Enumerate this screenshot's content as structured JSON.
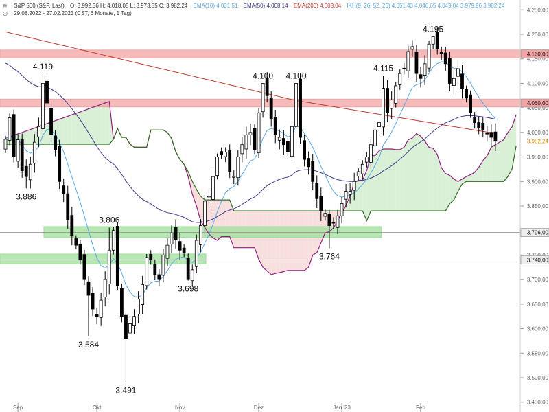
{
  "header": {
    "symbol": "S&P 500 (S&P, Last)",
    "ohlc": "O: 3.992,36  H: 4.018,05  L: 3.973,55  C: 3.982,24",
    "ema10": "EMA(10)  4.031,51",
    "ema50": "EMA(50)  4.008,14",
    "ema200": "EMA(200)  4.008,04",
    "ikh": "IKH(9, 26, 52, 26)  4.051,43  4.046,65  4.049,04  3.979,96  3.982,24",
    "range": "29.08.2022 - 27.02.2023  (CST, 6 Monate, 1 Tag)"
  },
  "colors": {
    "ema10": "#5aa9e6",
    "ema50": "#3a3a8a",
    "ema200": "#c0392b",
    "span_a": "#8e1f7e",
    "span_b": "#2e6b1f",
    "kumo_bull": "#d9efd6",
    "kumo_bear": "#f9dede",
    "resistance": "#f2a3a3",
    "support": "#9fdf9a"
  },
  "chart_data": {
    "type": "candlestick",
    "title": "S&P 500 (S&P, Last)",
    "period": "29.08.2022 - 27.02.2023",
    "y_axis": {
      "min": 3430,
      "max": 4270,
      "ticks": [
        "4.250,00",
        "4.200,00",
        "4.150,00",
        "4.100,00",
        "4.050,00",
        "4.000,00",
        "3.950,00",
        "3.900,00",
        "3.850,00",
        "3.800,00",
        "3.750,00",
        "3.700,00",
        "3.650,00",
        "3.600,00",
        "3.550,00",
        "3.500,00",
        "3.450,00"
      ],
      "tick_values": [
        4250,
        4200,
        4150,
        4100,
        4050,
        4000,
        3950,
        3900,
        3850,
        3800,
        3750,
        3700,
        3650,
        3600,
        3550,
        3500,
        3450
      ]
    },
    "x_axis": {
      "labels": [
        "Sep",
        "Okt",
        "Nov",
        "Dez",
        "Jan '23",
        "Feb"
      ],
      "label_index": [
        3,
        22,
        42,
        61,
        81,
        100
      ]
    },
    "price_tags": [
      {
        "label": "4.160,00",
        "value": 4160,
        "style": "resistance"
      },
      {
        "label": "4.060,00",
        "value": 4060,
        "style": "resistance"
      },
      {
        "label": "3.796,00",
        "value": 3796,
        "style": "plain"
      },
      {
        "label": "3.740,00",
        "value": 3740,
        "style": "plain"
      },
      {
        "label": "3.982,24",
        "value": 3982.24,
        "style": "last"
      }
    ],
    "zones": [
      {
        "name": "resistance 4.160",
        "low": 4152,
        "high": 4168,
        "color": "resistance"
      },
      {
        "name": "resistance 4.060",
        "low": 4052,
        "high": 4068,
        "color": "resistance"
      },
      {
        "name": "support 3.796",
        "low": 3786,
        "high": 3808,
        "color": "support"
      },
      {
        "name": "support 3.740",
        "low": 3732,
        "high": 3752,
        "color": "support"
      }
    ],
    "annotations": [
      {
        "text": "4.119",
        "index": 9,
        "value": 4119,
        "pos": "above"
      },
      {
        "text": "3.886",
        "index": 5,
        "value": 3886,
        "pos": "below"
      },
      {
        "text": "3.806",
        "index": 25,
        "value": 3806,
        "pos": "above"
      },
      {
        "text": "3.584",
        "index": 20,
        "value": 3584,
        "pos": "below"
      },
      {
        "text": "3.491",
        "index": 29,
        "value": 3491,
        "pos": "below"
      },
      {
        "text": "3.698",
        "index": 44,
        "value": 3698,
        "pos": "below"
      },
      {
        "text": "4.100",
        "index": 62,
        "value": 4100,
        "pos": "above"
      },
      {
        "text": "4.100",
        "index": 70,
        "value": 4100,
        "pos": "above"
      },
      {
        "text": "3.764",
        "index": 78,
        "value": 3764,
        "pos": "below"
      },
      {
        "text": "4.115",
        "index": 91,
        "value": 4115,
        "pos": "above"
      },
      {
        "text": "4.195",
        "index": 103,
        "value": 4195,
        "pos": "above"
      }
    ],
    "close": [
      3986,
      4030,
      3950,
      3985,
      3922,
      3910,
      3935,
      3980,
      4012,
      4100,
      4060,
      3995,
      3965,
      3900,
      3875,
      3822,
      3790,
      3770,
      3740,
      3700,
      3668,
      3640,
      3625,
      3658,
      3700,
      3760,
      3800,
      3688,
      3625,
      3580,
      3610,
      3625,
      3660,
      3690,
      3745,
      3740,
      3710,
      3700,
      3750,
      3770,
      3795,
      3782,
      3760,
      3755,
      3700,
      3720,
      3780,
      3810,
      3860,
      3870,
      3910,
      3950,
      3955,
      3960,
      3920,
      3910,
      3950,
      3975,
      3995,
      4000,
      3965,
      4040,
      4100,
      4075,
      4027,
      3995,
      3990,
      3975,
      3960,
      4012,
      4100,
      3990,
      3945,
      3930,
      3900,
      3865,
      3840,
      3835,
      3810,
      3815,
      3830,
      3855,
      3880,
      3880,
      3900,
      3920,
      3935,
      3950,
      3975,
      4005,
      4020,
      4090,
      4040,
      4066,
      4095,
      4120,
      4130,
      4165,
      4175,
      4120,
      4110,
      4140,
      4180,
      4195,
      4170,
      4160,
      4140,
      4100,
      4110,
      4130,
      4090,
      4070,
      4040,
      4020,
      4010,
      4005,
      3998,
      3990,
      3982
    ]
  }
}
